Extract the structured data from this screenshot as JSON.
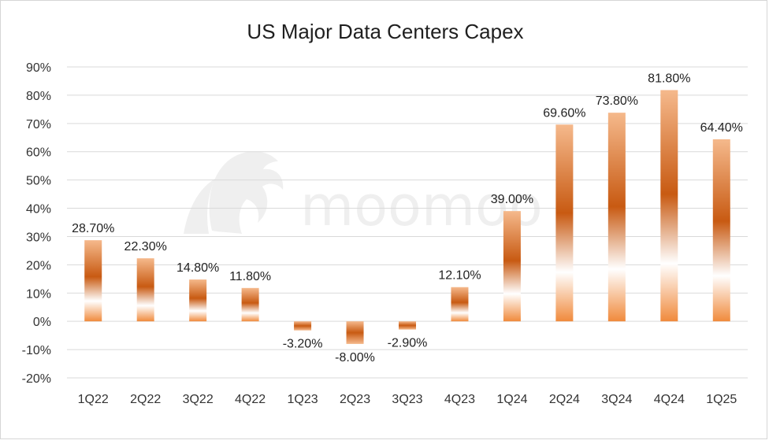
{
  "chart_data": {
    "type": "bar",
    "title": "US Major Data Centers Capex",
    "xlabel": "",
    "ylabel": "",
    "categories": [
      "1Q22",
      "2Q22",
      "3Q22",
      "4Q22",
      "1Q23",
      "2Q23",
      "3Q23",
      "4Q23",
      "1Q24",
      "2Q24",
      "3Q24",
      "4Q24",
      "1Q25"
    ],
    "values": [
      28.7,
      22.3,
      14.8,
      11.8,
      -3.2,
      -8.0,
      -2.9,
      12.1,
      39.0,
      69.6,
      73.8,
      81.8,
      64.4
    ],
    "data_labels": [
      "28.70%",
      "22.30%",
      "14.80%",
      "11.80%",
      "-3.20%",
      "-8.00%",
      "-2.90%",
      "12.10%",
      "39.00%",
      "69.60%",
      "73.80%",
      "81.80%",
      "64.40%"
    ],
    "ylim": [
      -20,
      90
    ],
    "yticks": [
      90,
      80,
      70,
      60,
      50,
      40,
      30,
      20,
      10,
      0,
      -10,
      -20
    ],
    "ytick_labels": [
      "90%",
      "80%",
      "70%",
      "60%",
      "50%",
      "40%",
      "30%",
      "20%",
      "10%",
      "0%",
      "-10%",
      "-20%"
    ],
    "grid": true,
    "legend": "none"
  },
  "watermark": {
    "text": "moomoo",
    "icon": "bull-head-logo-icon"
  },
  "colors": {
    "bar_dark": "#c85a12",
    "bar_light": "#f5b98c",
    "bar_white": "#ffffff",
    "bar_base": "#f08a3c",
    "grid": "#d9d9d9",
    "watermark": "#efefef"
  }
}
